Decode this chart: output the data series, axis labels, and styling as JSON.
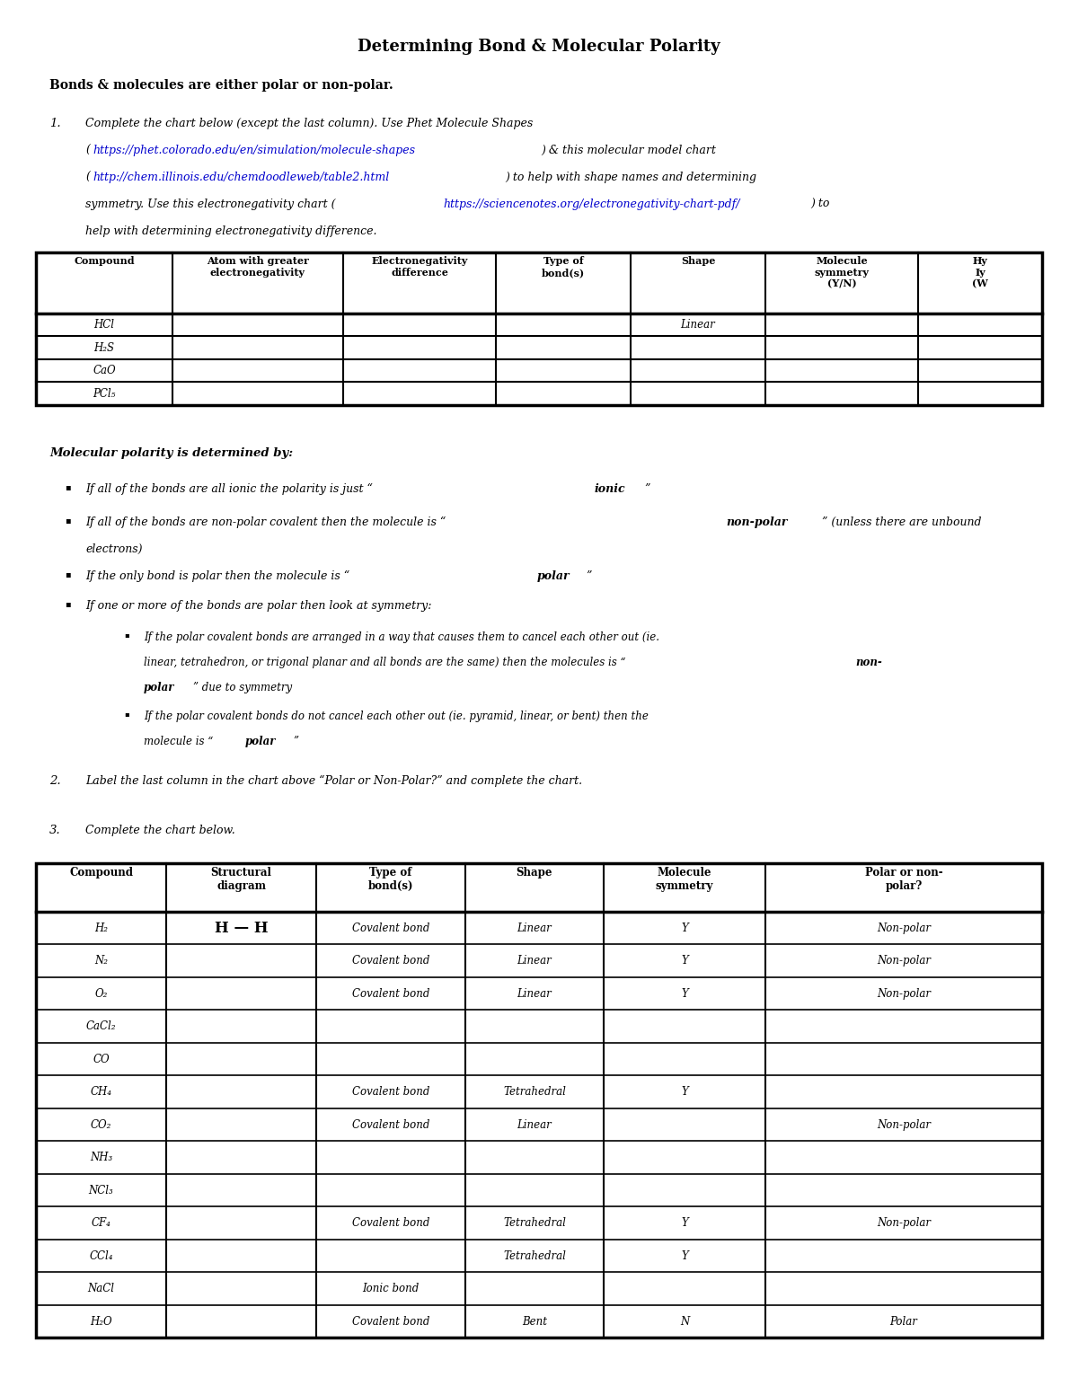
{
  "title": "Determining Bond & Molecular Polarity",
  "bold_intro": "Bonds & molecules are either polar or non-polar.",
  "item1_line1": "Complete the chart below (except the last column). Use Phet Molecule Shapes",
  "item1_url1": "https://phet.colorado.edu/en/simulation/molecule-shapes",
  "item1_line2_post": ") & this molecular model chart",
  "item1_url2": "http://chem.illinois.edu/chemdoodleweb/table2.html",
  "item1_line3_post": ") to help with shape names and determining",
  "item1_line4_pre": "symmetry. Use this electronegativity chart (",
  "item1_url3": "https://sciencenotes.org/electronegativity-chart-pdf/",
  "item1_line4_post": ") to",
  "item1_line5": "help with determining electronegativity difference.",
  "table1_headers": [
    "Compound",
    "Atom with greater\nelectronegativity",
    "Electronegativity\ndifference",
    "Type of\nbond(s)",
    "Shape",
    "Molecule\nsymmetry\n(Y/N)",
    "Hy\nIy\n(W"
  ],
  "table1_rows": [
    [
      "HCl",
      "",
      "",
      "",
      "Linear",
      "",
      ""
    ],
    [
      "H₂S",
      "",
      "",
      "",
      "",
      "",
      ""
    ],
    [
      "CaO",
      "",
      "",
      "",
      "",
      "",
      ""
    ],
    [
      "PCl₅",
      "",
      "",
      "",
      "",
      "",
      ""
    ]
  ],
  "mol_polarity_header": "Molecular polarity is determined by:",
  "bullet2_bold": "non-polar",
  "bullet3_bold": "polar",
  "subbullet1_bold1": "non-",
  "subbullet1_bold2": "polar",
  "subbullet2_bold": "polar",
  "item2_text": "Label the last column in the chart above “Polar or Non-Polar?” and complete the chart.",
  "item3_text": "Complete the chart below.",
  "table2_headers": [
    "Compound",
    "Structural\ndiagram",
    "Type of\nbond(s)",
    "Shape",
    "Molecule\nsymmetry",
    "Polar or non-\npolar?"
  ],
  "table2_rows": [
    [
      "H₂",
      "H — H",
      "Covalent bond",
      "Linear",
      "Y",
      "Non-polar"
    ],
    [
      "N₂",
      "",
      "Covalent bond",
      "Linear",
      "Y",
      "Non-polar"
    ],
    [
      "O₂",
      "",
      "Covalent bond",
      "Linear",
      "Y",
      "Non-polar"
    ],
    [
      "CaCl₂",
      "",
      "",
      "",
      "",
      ""
    ],
    [
      "CO",
      "",
      "",
      "",
      "",
      ""
    ],
    [
      "CH₄",
      "",
      "Covalent bond",
      "Tetrahedral",
      "Y",
      ""
    ],
    [
      "CO₂",
      "",
      "Covalent bond",
      "Linear",
      "",
      "Non-polar"
    ],
    [
      "NH₃",
      "",
      "",
      "",
      "",
      ""
    ],
    [
      "NCl₃",
      "",
      "",
      "",
      "",
      ""
    ],
    [
      "CF₄",
      "",
      "Covalent bond",
      "Tetrahedral",
      "Y",
      "Non-polar"
    ],
    [
      "CCl₄",
      "",
      "",
      "Tetrahedral",
      "Y",
      ""
    ],
    [
      "NaCl",
      "",
      "Ionic bond",
      "",
      "",
      ""
    ],
    [
      "H₂O",
      "",
      "Covalent bond",
      "Bent",
      "N",
      "Polar"
    ]
  ],
  "bg_color": "#ffffff",
  "link_color": "#0000cd"
}
